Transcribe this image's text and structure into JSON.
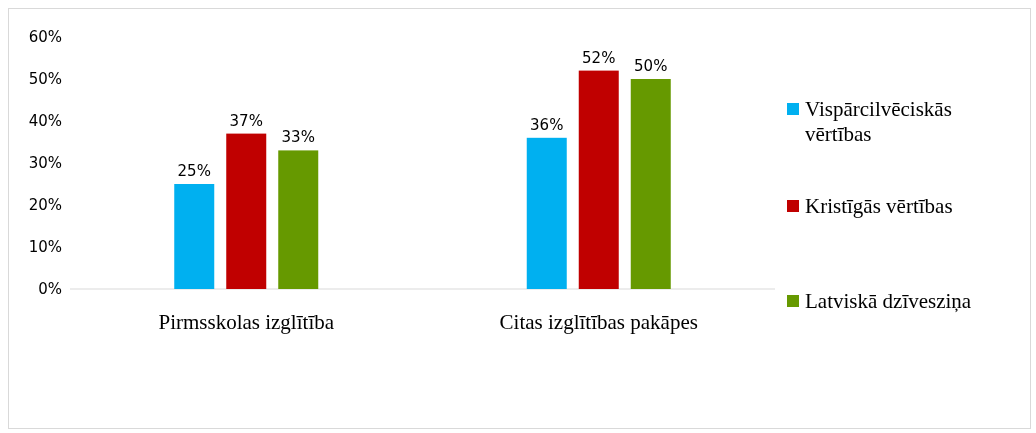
{
  "chart_data": {
    "type": "bar",
    "categories": [
      "Pirmsskolas izglītība",
      "Citas izglītības pakāpes"
    ],
    "series": [
      {
        "name": "Vispārcilvēciskās vērtības",
        "color": "#00b0f0",
        "values": [
          25,
          36
        ],
        "value_labels": [
          "25%",
          "36%"
        ]
      },
      {
        "name": "Kristīgās vērtības",
        "color": "#c00000",
        "values": [
          37,
          52
        ],
        "value_labels": [
          "37%",
          "52%"
        ]
      },
      {
        "name": "Latviskā dzīvesziņa",
        "color": "#669900",
        "values": [
          33,
          50
        ],
        "value_labels": [
          "33%",
          "50%"
        ]
      }
    ],
    "ylim": [
      0,
      60
    ],
    "yticks": [
      {
        "value": 0,
        "label": "0%"
      },
      {
        "value": 10,
        "label": "10%"
      },
      {
        "value": 20,
        "label": "20%"
      },
      {
        "value": 30,
        "label": "30%"
      },
      {
        "value": 40,
        "label": "40%"
      },
      {
        "value": 50,
        "label": "50%"
      },
      {
        "value": 60,
        "label": "60%"
      }
    ],
    "grid": false,
    "legend": "right"
  }
}
